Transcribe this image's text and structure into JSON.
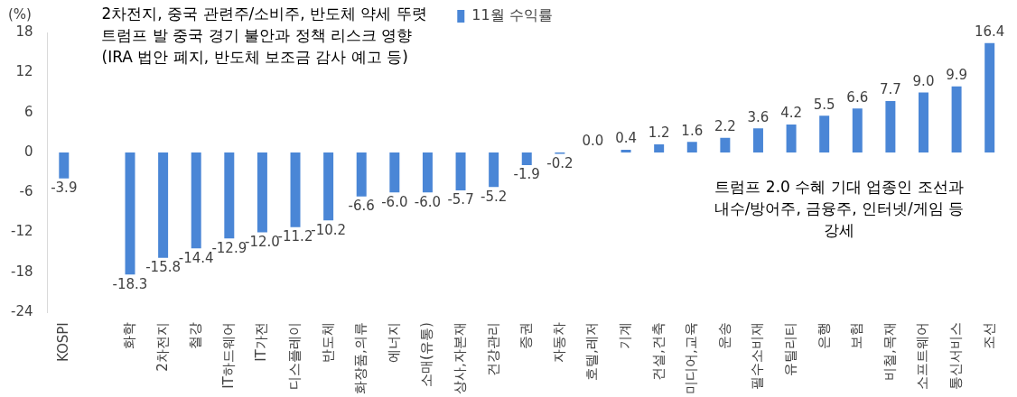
{
  "chart_data": {
    "type": "bar",
    "ylabel": "(%)",
    "categories": [
      "KOSPI",
      null,
      "화학",
      "2차전지",
      "철강",
      "IT하드웨어",
      "IT가전",
      "디스플레이",
      "반도체",
      "화장품,의류",
      "에너지",
      "소매(유통)",
      "상사,자본재",
      "건강관리",
      "증권",
      "자동차",
      "호텔,레저",
      "기계",
      "건설,건축",
      "미디어,교육",
      "운송",
      "필수소비재",
      "유틸리티",
      "은행",
      "보험",
      "비철,목재",
      "소프트웨어",
      "통신서비스",
      "조선"
    ],
    "series": [
      {
        "name": "11월 수익률",
        "color": "#4a86d6",
        "values": [
          -3.9,
          null,
          -18.3,
          -15.8,
          -14.4,
          -12.9,
          -12.0,
          -11.2,
          -10.2,
          -6.6,
          -6.0,
          -6.0,
          -5.7,
          -5.2,
          -1.9,
          -0.2,
          0.0,
          0.4,
          1.2,
          1.6,
          2.2,
          3.6,
          4.2,
          5.5,
          6.6,
          7.7,
          9.0,
          9.9,
          16.4
        ],
        "value_labels": [
          "-3.9",
          null,
          "-18.3",
          "-15.8",
          "-14.4",
          "-12.9",
          "-12.0",
          "-11.2",
          "-10.2",
          "-6.6",
          "-6.0",
          "-6.0",
          "-5.7",
          "-5.2",
          "-1.9",
          "-0.2",
          "0.0",
          "0.4",
          "1.2",
          "1.6",
          "2.2",
          "3.6",
          "4.2",
          "5.5",
          "6.6",
          "7.7",
          "9.0",
          "9.9",
          "16.4"
        ]
      }
    ],
    "ylim": [
      -24,
      18
    ],
    "yticks": [
      -24,
      -18,
      -12,
      -6,
      0,
      6,
      12,
      18
    ],
    "grid": false,
    "legend": "top",
    "annotations": [
      "2차전지, 중국 관련주/소비주, 반도체 약세 뚜렷\n트럼프 발 중국 경기 불안과 정책 리스크 영향\n(IRA 법안 폐지, 반도체 보조금 감사 예고 등)",
      "트럼프 2.0 수혜 기대 업종인 조선과\n내수/방어주, 금융주, 인터넷/게임 등\n강세"
    ]
  }
}
